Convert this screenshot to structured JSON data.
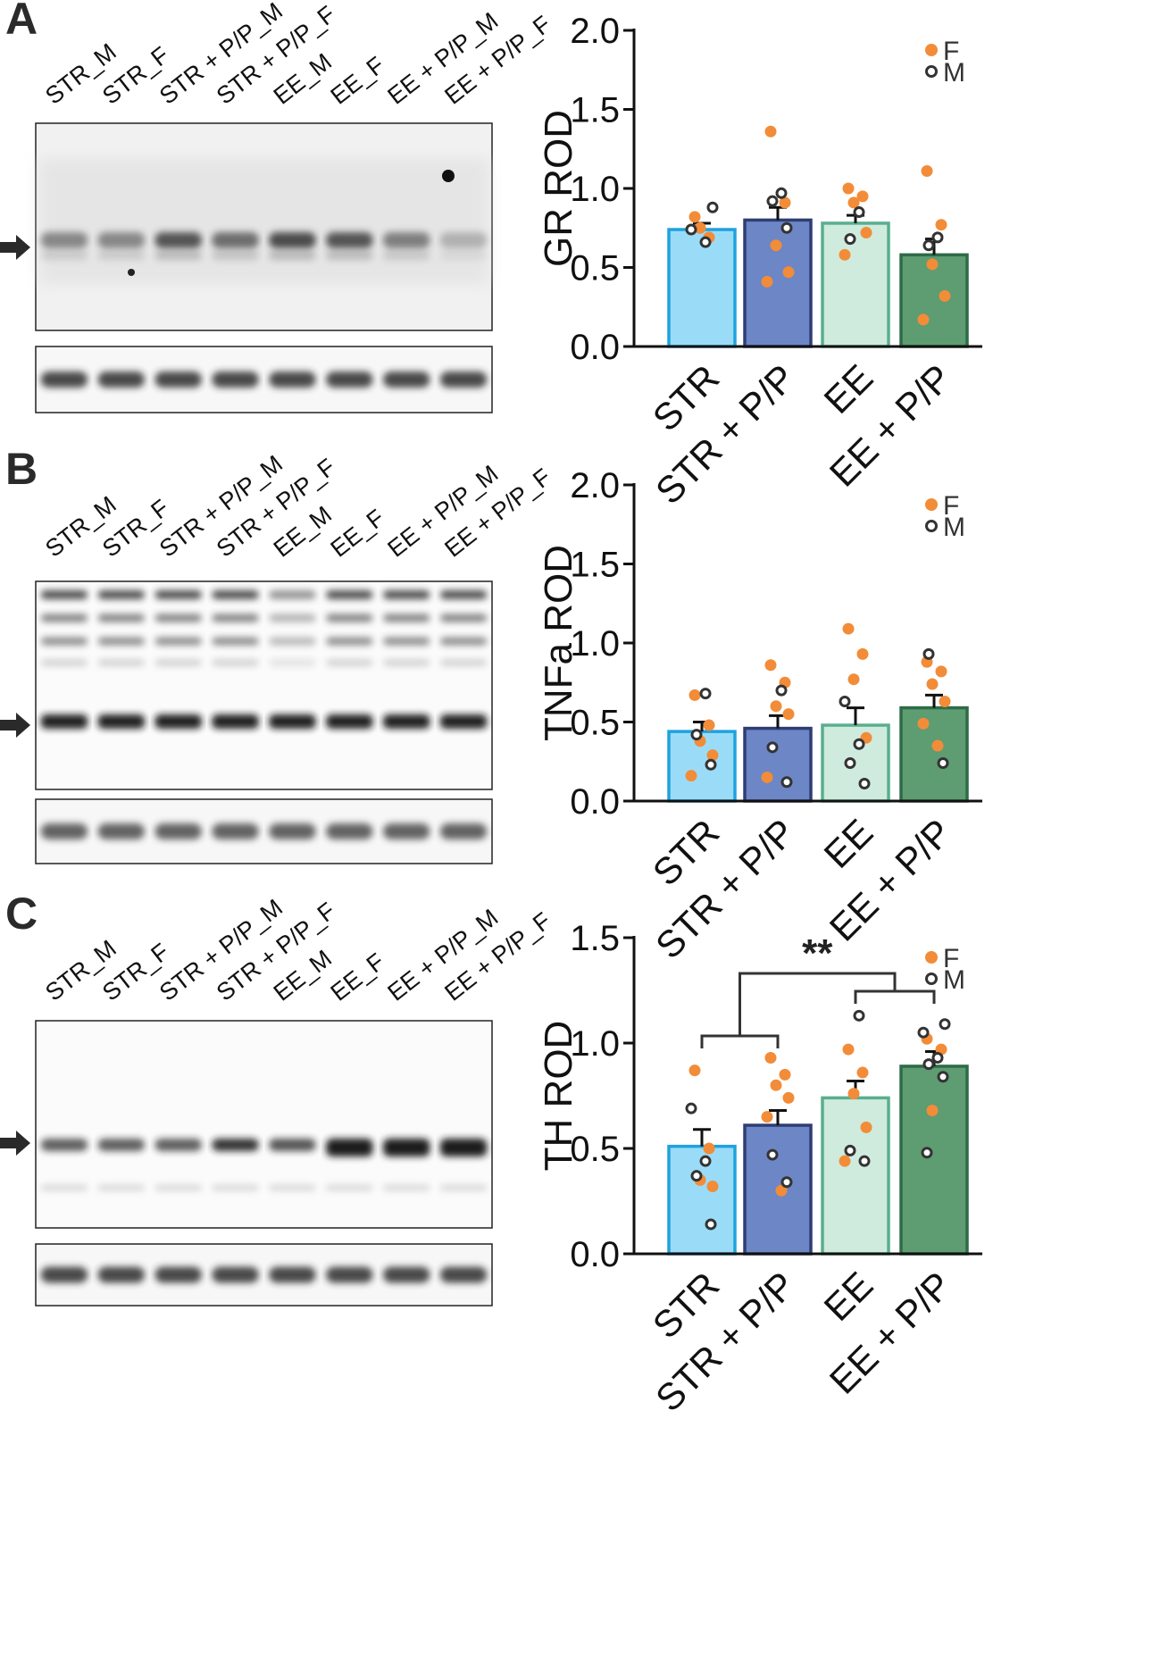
{
  "figure": {
    "lanes": [
      "STR_M",
      "STR_F",
      "STR + P/P_M",
      "STR + P/P_F",
      "EE_M",
      "EE_F",
      "EE + P/P_M",
      "EE + P/P_F"
    ],
    "legend": [
      {
        "label": "F",
        "marker": "filled",
        "color": "#F28C38"
      },
      {
        "label": "M",
        "marker": "open",
        "color": "#333333"
      }
    ],
    "bar_colors": [
      "#9ADCF7",
      "#6D86C6",
      "#CFEBDD",
      "#5E9C72"
    ],
    "bar_edge_colors": [
      "#1FA2DE",
      "#2E3E73",
      "#5AAE8E",
      "#2E6B47"
    ],
    "point_color_f": "#F28C38",
    "point_color_m": "#333333",
    "panels": [
      {
        "letter": "A",
        "blot_label": "GR",
        "band_style": "gr"
      },
      {
        "letter": "B",
        "blot_label": "TNFa",
        "band_style": "tnf"
      },
      {
        "letter": "C",
        "blot_label": "TH",
        "band_style": "th"
      }
    ]
  },
  "chart_data": [
    {
      "type": "bar",
      "panel": "A",
      "categories": [
        "STR",
        "STR + P/P",
        "EE",
        "EE + P/P"
      ],
      "ylabel": "GR ROD",
      "ylim": [
        0,
        2.0
      ],
      "yticks": [
        "0.0",
        "0.5",
        "1.0",
        "1.5",
        "2.0"
      ],
      "values": [
        0.74,
        0.8,
        0.78,
        0.58
      ],
      "sem": [
        0.04,
        0.08,
        0.05,
        0.1
      ],
      "points": [
        {
          "F": [
            0.82,
            0.69,
            0.75
          ],
          "M": [
            0.88,
            0.74,
            0.66
          ]
        },
        {
          "F": [
            1.36,
            0.91,
            0.64,
            0.47,
            0.41
          ],
          "M": [
            0.97,
            0.92,
            0.75
          ]
        },
        {
          "F": [
            1.0,
            0.95,
            0.91,
            0.72,
            0.58
          ],
          "M": [
            0.85,
            0.68
          ]
        },
        {
          "F": [
            1.11,
            0.77,
            0.52,
            0.32,
            0.17
          ],
          "M": [
            0.69,
            0.64
          ]
        }
      ],
      "significance": []
    },
    {
      "type": "bar",
      "panel": "B",
      "categories": [
        "STR",
        "STR + P/P",
        "EE",
        "EE + P/P"
      ],
      "ylabel": "TNFa ROD",
      "ylim": [
        0,
        2.0
      ],
      "yticks": [
        "0.0",
        "0.5",
        "1.0",
        "1.5",
        "2.0"
      ],
      "values": [
        0.44,
        0.46,
        0.48,
        0.59
      ],
      "sem": [
        0.06,
        0.08,
        0.11,
        0.08
      ],
      "points": [
        {
          "F": [
            0.67,
            0.48,
            0.38,
            0.29,
            0.16
          ],
          "M": [
            0.68,
            0.42,
            0.23
          ]
        },
        {
          "F": [
            0.86,
            0.75,
            0.6,
            0.55,
            0.15
          ],
          "M": [
            0.7,
            0.34,
            0.12
          ]
        },
        {
          "F": [
            1.09,
            0.93,
            0.77,
            0.4
          ],
          "M": [
            0.63,
            0.36,
            0.24,
            0.11
          ]
        },
        {
          "F": [
            0.88,
            0.82,
            0.74,
            0.63,
            0.49,
            0.35
          ],
          "M": [
            0.93,
            0.24
          ]
        }
      ],
      "significance": []
    },
    {
      "type": "bar",
      "panel": "C",
      "categories": [
        "STR",
        "STR + P/P",
        "EE",
        "EE + P/P"
      ],
      "ylabel": "TH ROD",
      "ylim": [
        0,
        1.5
      ],
      "yticks": [
        "0.0",
        "0.5",
        "1.0",
        "1.5"
      ],
      "values": [
        0.51,
        0.61,
        0.74,
        0.89
      ],
      "sem": [
        0.08,
        0.07,
        0.08,
        0.07
      ],
      "points": [
        {
          "F": [
            0.87,
            0.5,
            0.35,
            0.32
          ],
          "M": [
            0.69,
            0.44,
            0.37,
            0.14
          ]
        },
        {
          "F": [
            0.93,
            0.85,
            0.8,
            0.74,
            0.65,
            0.3
          ],
          "M": [
            0.47,
            0.34
          ]
        },
        {
          "F": [
            0.97,
            0.86,
            0.76,
            0.6,
            0.44
          ],
          "M": [
            1.13,
            0.49,
            0.44
          ]
        },
        {
          "F": [
            1.02,
            0.97,
            0.68
          ],
          "M": [
            1.09,
            1.05,
            0.93,
            0.9,
            0.84,
            0.48
          ]
        }
      ],
      "significance": [
        {
          "label": "**",
          "pairs": [
            [
              0,
              1
            ],
            [
              2,
              3
            ]
          ]
        }
      ]
    }
  ]
}
